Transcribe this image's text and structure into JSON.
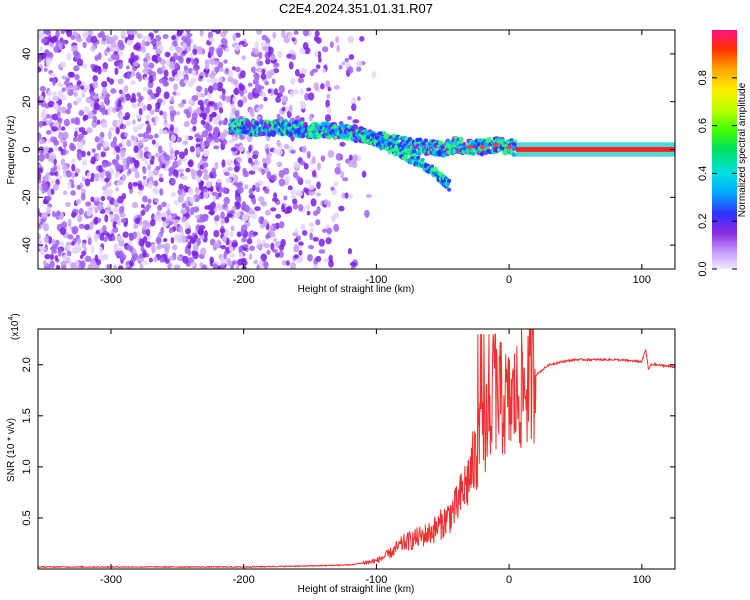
{
  "title": "C2E4.2024.351.01.31.R07",
  "colorbar": {
    "label": "Normalized spectral amplitude",
    "ticks": [
      "0.0",
      "0.2",
      "0.4",
      "0.6",
      "0.8"
    ],
    "tick_values": [
      0.0,
      0.2,
      0.4,
      0.6,
      0.8
    ],
    "range": [
      0,
      1
    ]
  },
  "chart_data": [
    {
      "type": "heatmap",
      "xlabel": "Height of straight line (km)",
      "ylabel": "Frequency (Hz)",
      "xlim": [
        -355,
        125
      ],
      "ylim": [
        -50,
        50
      ],
      "xticks": [
        -300,
        -200,
        -100,
        0,
        100
      ],
      "yticks": [
        -40,
        -20,
        0,
        20,
        40
      ],
      "xtick_labels": [
        "-300",
        "-200",
        "-100",
        "0",
        "100"
      ],
      "ytick_labels": [
        "-40",
        "-20",
        "0",
        "20",
        "40"
      ],
      "ridge": {
        "x": [
          -210,
          -190,
          -170,
          -150,
          -130,
          -110,
          -95,
          -80,
          -65,
          -50,
          -40,
          -30,
          -20,
          -10,
          0,
          10,
          50,
          100,
          125
        ],
        "y": [
          10,
          9,
          9,
          8,
          8,
          6,
          4,
          2,
          1,
          0,
          2,
          1,
          1,
          2,
          1,
          0,
          0,
          0,
          0
        ]
      },
      "branch": {
        "x": [
          -110,
          -95,
          -80,
          -65,
          -55,
          -45
        ],
        "y": [
          6,
          2,
          -2,
          -6,
          -10,
          -15
        ]
      },
      "noise_region_x": [
        -355,
        -130
      ]
    },
    {
      "type": "line",
      "xlabel": "Height of straight line (km)",
      "ylabel": "SNR (10 * v/v)",
      "yscale_label": "(x10",
      "yscale_exp": "4",
      "yscale_close": ")",
      "xlim": [
        -355,
        125
      ],
      "ylim": [
        0,
        2.35
      ],
      "xticks": [
        -300,
        -200,
        -100,
        0,
        100
      ],
      "yticks": [
        0.5,
        1.0,
        1.5,
        2.0
      ],
      "xtick_labels": [
        "-300",
        "-200",
        "-100",
        "0",
        "100"
      ],
      "ytick_labels": [
        "0.5",
        "1.0",
        "1.5",
        "2.0"
      ],
      "color": "#ee3030",
      "series": [
        {
          "x": [
            -355,
            -300,
            -200,
            -150,
            -120,
            -100,
            -90,
            -80,
            -70,
            -60,
            -50,
            -40,
            -30,
            -20,
            -15,
            -10,
            -5,
            0,
            10,
            20,
            30,
            40,
            50,
            60,
            80,
            100,
            103,
            105,
            107,
            110,
            125
          ],
          "y": [
            0.02,
            0.02,
            0.02,
            0.03,
            0.04,
            0.08,
            0.15,
            0.25,
            0.3,
            0.35,
            0.45,
            0.6,
            0.9,
            1.3,
            1.6,
            1.7,
            1.65,
            1.6,
            1.75,
            1.9,
            2.0,
            2.03,
            2.05,
            2.05,
            2.05,
            2.03,
            2.15,
            1.95,
            2.0,
            2.0,
            1.98
          ]
        }
      ]
    }
  ]
}
